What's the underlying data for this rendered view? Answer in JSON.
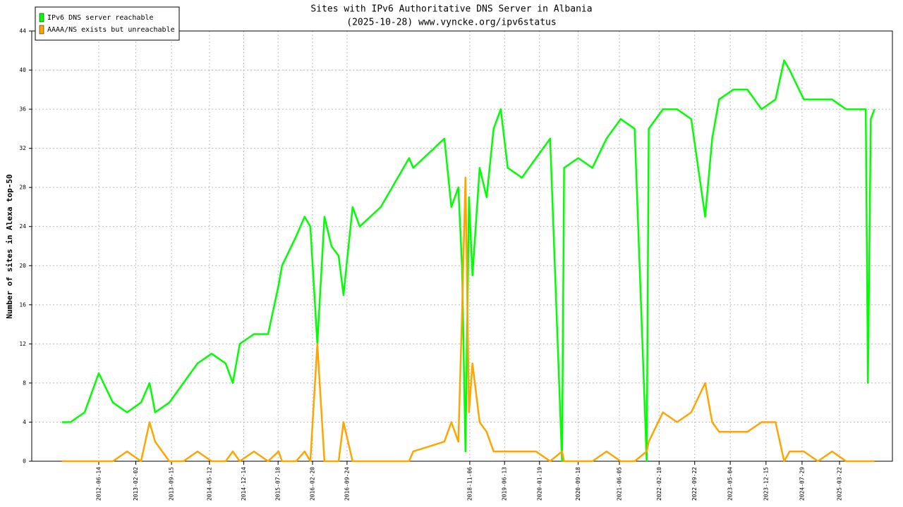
{
  "chart_data": {
    "type": "line",
    "title": "Sites with IPv6 Authoritative DNS Server in Albania",
    "subtitle": "(2025-10-28) www.vyncke.org/ipv6status",
    "y_label": "Number of sites in Alexa top-50",
    "x": [
      "2011-10-26",
      "2011-12-19",
      "2012-03-17",
      "2012-06-14",
      "2012-09-11",
      "2012-12-09",
      "2013-03-07",
      "2013-04-30",
      "2013-06-04",
      "2013-09-01",
      "2013-11-29",
      "2014-02-26",
      "2014-05-25",
      "2014-08-22",
      "2014-10-06",
      "2014-11-19",
      "2015-02-16",
      "2015-05-16",
      "2015-07-21",
      "2015-08-12",
      "2015-11-09",
      "2016-01-01",
      "2016-02-06",
      "2016-03-21",
      "2016-05-05",
      "2016-06-18",
      "2016-08-02",
      "2016-09-02",
      "2016-10-29",
      "2016-12-13",
      "2017-04-25",
      "2017-10-20",
      "2017-11-15",
      "2018-05-30",
      "2018-07-13",
      "2018-08-26",
      "2018-09-18",
      "2018-10-10",
      "2018-11-01",
      "2018-11-23",
      "2019-01-07",
      "2019-02-20",
      "2019-04-05",
      "2019-05-20",
      "2019-07-03",
      "2019-09-30",
      "2019-12-28",
      "2020-03-26",
      "2020-06-09",
      "2020-06-22",
      "2020-09-19",
      "2020-12-17",
      "2021-03-16",
      "2021-06-13",
      "2021-09-09",
      "2021-11-24",
      "2021-12-07",
      "2022-03-06",
      "2022-06-03",
      "2022-08-31",
      "2022-11-27",
      "2023-01-10",
      "2023-02-23",
      "2023-05-23",
      "2023-08-20",
      "2023-11-17",
      "2024-02-13",
      "2024-04-07",
      "2024-05-12",
      "2024-08-09",
      "2024-11-06",
      "2025-02-03",
      "2025-05-02",
      "2025-07-30",
      "2025-09-03",
      "2025-09-17",
      "2025-10-05",
      "2025-10-28"
    ],
    "series": [
      {
        "name": "IPv6 DNS server reachable",
        "color": "#00ff00",
        "values": [
          4,
          4,
          5,
          9,
          6,
          5,
          6,
          8,
          5,
          6,
          8,
          10,
          11,
          10,
          8,
          12,
          13,
          13,
          18,
          20,
          23,
          25,
          24,
          12,
          25,
          22,
          21,
          17,
          26,
          24,
          26,
          31,
          30,
          33,
          26,
          28,
          20,
          1,
          27,
          19,
          30,
          27,
          34,
          36,
          30,
          29,
          31,
          33,
          0,
          30,
          31,
          30,
          33,
          35,
          34,
          0,
          34,
          36,
          36,
          35,
          25,
          33,
          37,
          38,
          38,
          36,
          37,
          41,
          40,
          37,
          37,
          37,
          36,
          36,
          36,
          8,
          35,
          36
        ]
      },
      {
        "name": "AAAA/NS exists but unreachable",
        "color": "#ffa500",
        "values": [
          0,
          0,
          0,
          0,
          0,
          1,
          0,
          4,
          2,
          0,
          0,
          1,
          0,
          0,
          1,
          0,
          1,
          0,
          1,
          0,
          0,
          1,
          0,
          12,
          0,
          0,
          0,
          4,
          0,
          0,
          0,
          0,
          1,
          2,
          4,
          2,
          15,
          29,
          5,
          10,
          4,
          3,
          1,
          1,
          1,
          1,
          1,
          0,
          1,
          0,
          0,
          0,
          1,
          0,
          0,
          1,
          2,
          5,
          4,
          5,
          8,
          4,
          3,
          3,
          3,
          4,
          4,
          0,
          1,
          1,
          0,
          1,
          0,
          0,
          0,
          0,
          0,
          0
        ]
      }
    ],
    "xlim": [
      "2011-04-19",
      "2026-02-18"
    ],
    "xticks": [
      "2012-06-14",
      "2013-02-02",
      "2013-09-15",
      "2014-05-12",
      "2014-12-14",
      "2015-07-18",
      "2016-02-20",
      "2016-09-24",
      "2018-11-06",
      "2019-06-13",
      "2020-01-19",
      "2020-09-18",
      "2021-06-05",
      "2022-02-10",
      "2022-09-22",
      "2023-05-04",
      "2023-12-15",
      "2024-07-29",
      "2025-03-22"
    ],
    "ylim": [
      0,
      44
    ],
    "yticks": [
      0,
      4,
      8,
      12,
      16,
      20,
      24,
      28,
      32,
      36,
      40,
      44
    ],
    "grid": true,
    "legend": "top-left"
  }
}
